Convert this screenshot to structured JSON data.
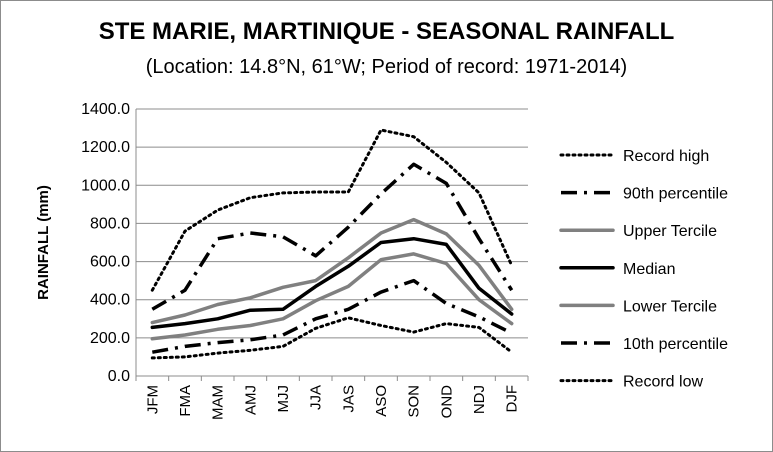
{
  "chart_data": {
    "type": "line",
    "title": "STE MARIE, MARTINIQUE - SEASONAL RAINFALL",
    "subtitle": "(Location: 14.8°N, 61°W; Period of record: 1971-2014)",
    "xlabel": "",
    "ylabel": "RAINFALL (mm)",
    "ylim": [
      0,
      1400
    ],
    "ytick_labels": [
      "0.0",
      "200.0",
      "400.0",
      "600.0",
      "800.0",
      "1000.0",
      "1200.0",
      "1400.0"
    ],
    "categories": [
      "JFM",
      "FMA",
      "MAM",
      "AMJ",
      "MJJ",
      "JJA",
      "JAS",
      "ASO",
      "SON",
      "OND",
      "NDJ",
      "DJF"
    ],
    "grid": true,
    "legend_position": "right",
    "series": [
      {
        "name": "Record high",
        "style": "dotted",
        "color": "#000000",
        "values": [
          450,
          760,
          870,
          935,
          960,
          965,
          965,
          1290,
          1255,
          1120,
          960,
          580
        ]
      },
      {
        "name": "90th percentile",
        "style": "dashdot",
        "color": "#000000",
        "values": [
          350,
          450,
          720,
          750,
          730,
          630,
          780,
          955,
          1110,
          1010,
          720,
          450
        ]
      },
      {
        "name": "Upper Tercile",
        "style": "solid",
        "color": "#808080",
        "values": [
          280,
          320,
          375,
          410,
          465,
          500,
          620,
          750,
          820,
          745,
          580,
          350
        ]
      },
      {
        "name": "Median",
        "style": "solid",
        "color": "#000000",
        "values": [
          255,
          275,
          300,
          345,
          350,
          470,
          575,
          700,
          720,
          690,
          460,
          325
        ]
      },
      {
        "name": "Lower Tercile",
        "style": "solid",
        "color": "#808080",
        "values": [
          195,
          215,
          245,
          265,
          300,
          395,
          470,
          610,
          640,
          590,
          400,
          275
        ]
      },
      {
        "name": "10th percentile",
        "style": "dashdot",
        "color": "#000000",
        "values": [
          125,
          155,
          175,
          190,
          215,
          300,
          350,
          440,
          500,
          380,
          310,
          225
        ]
      },
      {
        "name": "Record low",
        "style": "dotted",
        "color": "#000000",
        "values": [
          95,
          100,
          120,
          135,
          155,
          250,
          305,
          265,
          230,
          275,
          255,
          125
        ]
      }
    ]
  }
}
